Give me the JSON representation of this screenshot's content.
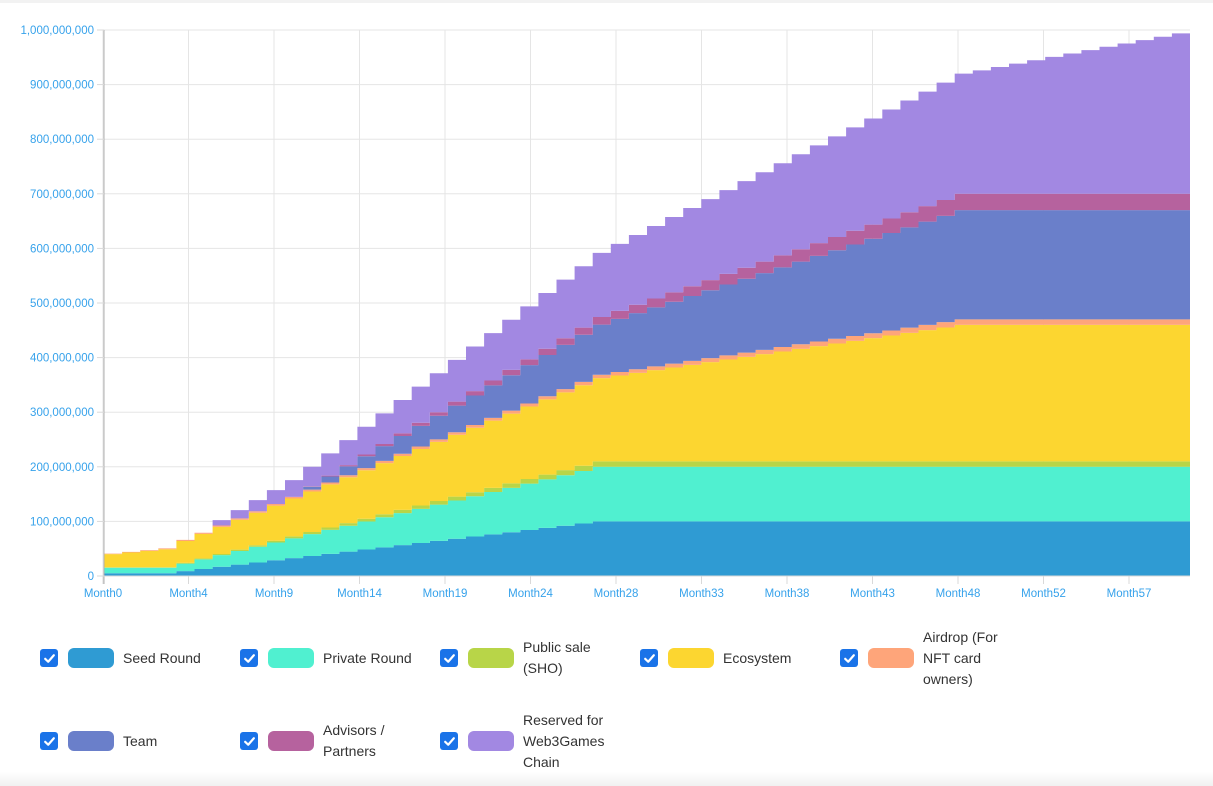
{
  "chart_data": {
    "type": "area",
    "stacked": true,
    "stepped": true,
    "title": "",
    "xlabel": "",
    "ylabel": "",
    "value_scale": 1000000,
    "value_unit_note": "series values are in millions of tokens (cumulative unlocked, stacked)",
    "ylim": [
      0,
      1000000000
    ],
    "yticks": [
      0,
      100000000,
      200000000,
      300000000,
      400000000,
      500000000,
      600000000,
      700000000,
      800000000,
      900000000,
      1000000000
    ],
    "ytick_labels": [
      "0",
      "100,000,000",
      "200,000,000",
      "300,000,000",
      "400,000,000",
      "500,000,000",
      "600,000,000",
      "700,000,000",
      "800,000,000",
      "900,000,000",
      "1,000,000,000"
    ],
    "xtick_labels": [
      "Month0",
      "Month4",
      "Month9",
      "Month14",
      "Month19",
      "Month24",
      "Month28",
      "Month33",
      "Month38",
      "Month43",
      "Month48",
      "Month52",
      "Month57"
    ],
    "x_count": 61,
    "x_prefix": "Month",
    "grid": true,
    "legend_position": "bottom",
    "series": [
      {
        "name": "Seed Round",
        "color": "#2f9bd3",
        "checked": true,
        "values": [
          5,
          5,
          5,
          5,
          8.96,
          12.92,
          16.88,
          20.83,
          24.79,
          28.75,
          32.71,
          36.67,
          40.63,
          44.58,
          48.54,
          52.5,
          56.46,
          60.42,
          64.38,
          68.33,
          72.29,
          76.25,
          80.21,
          84.17,
          88.13,
          92.08,
          96.04,
          100,
          100,
          100,
          100,
          100,
          100,
          100,
          100,
          100,
          100,
          100,
          100,
          100,
          100,
          100,
          100,
          100,
          100,
          100,
          100,
          100,
          100,
          100,
          100,
          100,
          100,
          100,
          100,
          100,
          100,
          100,
          100,
          100,
          100
        ]
      },
      {
        "name": "Private Round",
        "color": "#50f0d0",
        "checked": true,
        "values": [
          10,
          10,
          10,
          10,
          13.75,
          17.5,
          21.25,
          25,
          28.75,
          32.5,
          36.25,
          40,
          43.75,
          47.5,
          51.25,
          55,
          58.75,
          62.5,
          66.25,
          70,
          73.75,
          77.5,
          81.25,
          85,
          88.75,
          92.5,
          96.25,
          100,
          100,
          100,
          100,
          100,
          100,
          100,
          100,
          100,
          100,
          100,
          100,
          100,
          100,
          100,
          100,
          100,
          100,
          100,
          100,
          100,
          100,
          100,
          100,
          100,
          100,
          100,
          100,
          100,
          100,
          100,
          100,
          100,
          100
        ]
      },
      {
        "name": "Public sale (SHO)",
        "color": "#b8d548",
        "checked": true,
        "values": [
          1,
          1,
          1,
          1,
          1.38,
          1.75,
          2.13,
          2.5,
          2.88,
          3.25,
          3.63,
          4,
          4.38,
          4.75,
          5.13,
          5.5,
          5.88,
          6.25,
          6.63,
          7,
          7.38,
          7.75,
          8.13,
          8.5,
          8.88,
          9.25,
          9.63,
          10,
          10,
          10,
          10,
          10,
          10,
          10,
          10,
          10,
          10,
          10,
          10,
          10,
          10,
          10,
          10,
          10,
          10,
          10,
          10,
          10,
          10,
          10,
          10,
          10,
          10,
          10,
          10,
          10,
          10,
          10,
          10,
          10,
          10
        ]
      },
      {
        "name": "Ecosystem",
        "color": "#fcd630",
        "checked": true,
        "values": [
          24,
          27,
          30,
          33,
          40,
          44.88,
          49.77,
          54.65,
          59.53,
          64.42,
          69.3,
          74.19,
          79.07,
          83.95,
          88.84,
          93.72,
          98.6,
          103.49,
          108.37,
          113.26,
          118.14,
          123.02,
          127.91,
          132.79,
          137.67,
          142.56,
          147.44,
          152.33,
          157.21,
          162.09,
          166.98,
          171.86,
          176.74,
          181.63,
          186.51,
          191.4,
          196.28,
          201.16,
          206.05,
          210.93,
          215.81,
          220.7,
          225.58,
          230.47,
          235.35,
          240.23,
          245.12,
          250,
          250,
          250,
          250,
          250,
          250,
          250,
          250,
          250,
          250,
          250,
          250,
          250,
          250
        ]
      },
      {
        "name": "Airdrop (For NFT card owners)",
        "color": "#fea57a",
        "checked": true,
        "values": [
          1,
          1.2,
          1.4,
          1.6,
          2,
          2.19,
          2.37,
          2.56,
          2.74,
          2.93,
          3.12,
          3.3,
          3.49,
          3.67,
          3.86,
          4.05,
          4.23,
          4.42,
          4.6,
          4.79,
          4.98,
          5.16,
          5.35,
          5.53,
          5.72,
          5.91,
          6.09,
          6.28,
          6.47,
          6.65,
          6.84,
          7.02,
          7.21,
          7.4,
          7.58,
          7.77,
          7.95,
          8.14,
          8.33,
          8.51,
          8.7,
          8.88,
          9.07,
          9.26,
          9.44,
          9.63,
          9.81,
          10,
          10,
          10,
          10,
          10,
          10,
          10,
          10,
          10,
          10,
          10,
          10,
          10,
          10
        ]
      },
      {
        "name": "Team",
        "color": "#6a7fca",
        "checked": true,
        "values": [
          0,
          0,
          0,
          0,
          0,
          0,
          0,
          0,
          0,
          0,
          0,
          5.41,
          10.81,
          16.22,
          21.62,
          27.03,
          32.43,
          37.84,
          43.24,
          48.65,
          54.05,
          59.46,
          64.86,
          70.27,
          75.68,
          81.08,
          86.49,
          91.89,
          97.3,
          102.7,
          108.11,
          113.51,
          118.92,
          124.32,
          129.73,
          135.14,
          140.54,
          145.95,
          151.35,
          156.76,
          162.16,
          167.57,
          172.97,
          178.38,
          183.78,
          189.19,
          194.59,
          200,
          200,
          200,
          200,
          200,
          200,
          200,
          200,
          200,
          200,
          200,
          200,
          200,
          200
        ]
      },
      {
        "name": "Advisors / Partners",
        "color": "#b6629e",
        "checked": true,
        "values": [
          0,
          0,
          0,
          0,
          0,
          0,
          0,
          0,
          0,
          0,
          0,
          0.81,
          1.62,
          2.43,
          3.24,
          4.05,
          4.86,
          5.68,
          6.49,
          7.3,
          8.11,
          8.92,
          9.73,
          10.54,
          11.35,
          12.16,
          12.97,
          13.78,
          14.59,
          15.41,
          16.22,
          17.03,
          17.84,
          18.65,
          19.46,
          20.27,
          21.08,
          21.89,
          22.7,
          23.51,
          24.32,
          25.14,
          25.95,
          26.76,
          27.57,
          28.38,
          29.19,
          30,
          30,
          30,
          30,
          30,
          30,
          30,
          30,
          30,
          30,
          30,
          30,
          30,
          30
        ]
      },
      {
        "name": "Reserved for Web3Games Chain",
        "color": "#a288e2",
        "checked": true,
        "values": [
          0,
          0,
          0,
          0,
          0,
          0,
          10,
          15.12,
          20.24,
          25.37,
          30.49,
          35.61,
          40.73,
          45.85,
          50.98,
          56.1,
          61.22,
          66.34,
          71.46,
          76.59,
          81.71,
          86.83,
          91.95,
          97.07,
          102.2,
          107.32,
          112.44,
          117.56,
          122.68,
          127.8,
          132.93,
          138.05,
          143.17,
          148.29,
          153.41,
          158.54,
          163.66,
          168.78,
          173.9,
          179.02,
          184.15,
          189.27,
          194.39,
          199.51,
          204.63,
          209.76,
          214.88,
          220,
          226.15,
          232.31,
          238.46,
          244.62,
          250.77,
          256.92,
          263.08,
          269.23,
          275.38,
          281.54,
          287.69,
          293.85,
          300
        ]
      }
    ]
  },
  "legend": {
    "items": [
      {
        "label_lines": [
          "Seed Round"
        ]
      },
      {
        "label_lines": [
          "Private Round"
        ]
      },
      {
        "label_lines": [
          "Public sale",
          "(SHO)"
        ]
      },
      {
        "label_lines": [
          "Ecosystem"
        ]
      },
      {
        "label_lines": [
          "Airdrop (For",
          "NFT card",
          "owners)"
        ]
      },
      {
        "label_lines": [
          "Team"
        ]
      },
      {
        "label_lines": [
          "Advisors /",
          "Partners"
        ]
      },
      {
        "label_lines": [
          "Reserved for",
          "Web3Games",
          "Chain"
        ]
      }
    ]
  }
}
